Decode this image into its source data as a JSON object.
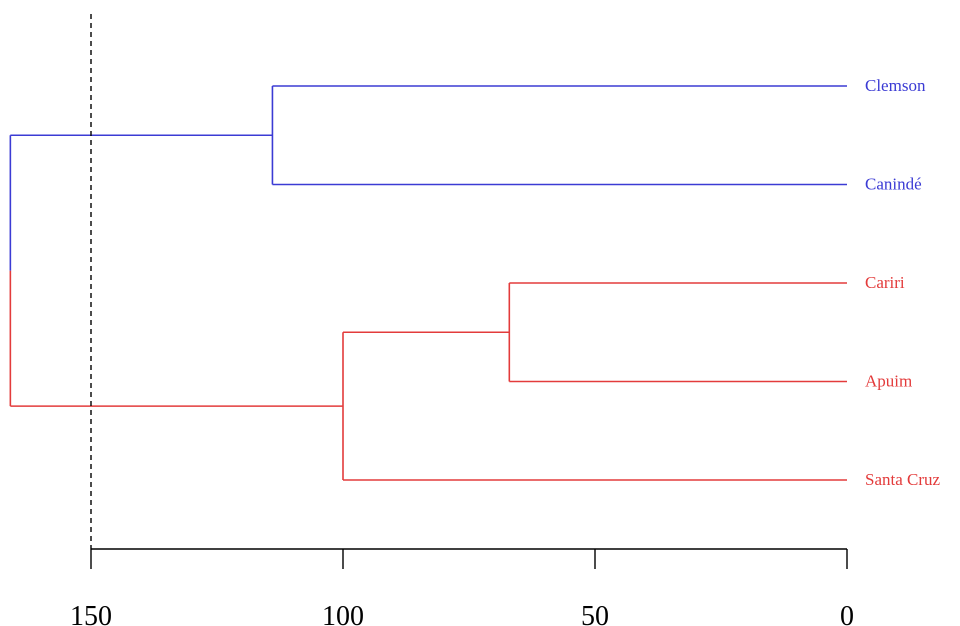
{
  "chart_data": {
    "type": "dendrogram",
    "orientation": "horizontal",
    "x_axis": {
      "direction": "reversed",
      "range": [
        165,
        0
      ],
      "ticks": [
        150,
        100,
        50,
        0
      ],
      "tick_labels": [
        "150",
        "100",
        "50",
        "0"
      ]
    },
    "leaves": [
      {
        "label": "Clemson",
        "cluster": 0
      },
      {
        "label": "Canindé",
        "cluster": 0
      },
      {
        "label": "Cariri",
        "cluster": 1
      },
      {
        "label": "Apuim",
        "cluster": 1
      },
      {
        "label": "Santa Cruz",
        "cluster": 1
      }
    ],
    "merges": [
      {
        "children": [
          "Cariri",
          "Apuim"
        ],
        "height": 67,
        "cluster": 1
      },
      {
        "children": [
          "Cariri+Apuim",
          "Santa Cruz"
        ],
        "height": 100,
        "cluster": 1
      },
      {
        "children": [
          "Clemson",
          "Canindé"
        ],
        "height": 114,
        "cluster": 0
      },
      {
        "children": [
          "Clemson+Canindé",
          "Cariri+Apuim+Santa Cruz"
        ],
        "height": 166,
        "cluster": "root"
      }
    ],
    "cut_height": 150,
    "cut_line_style": "dashed",
    "cluster_colors": [
      "#3b3bd4",
      "#e33b3b"
    ],
    "axis_color": "#000000"
  }
}
